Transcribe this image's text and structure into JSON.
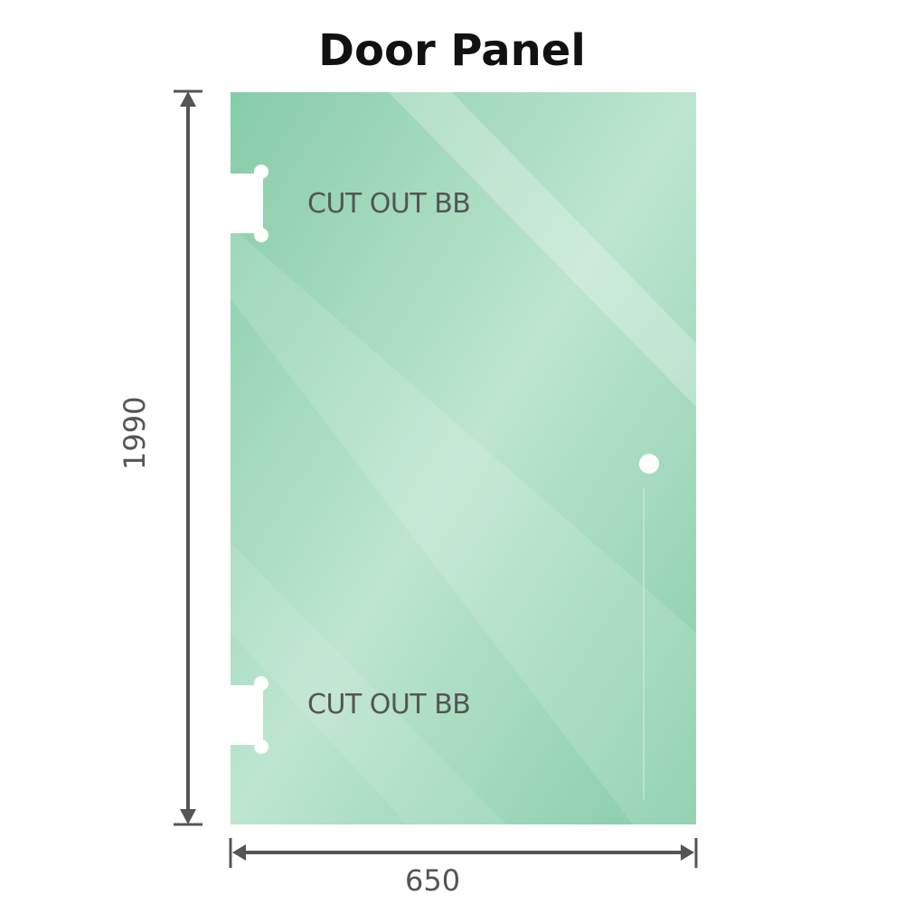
{
  "title": "Door Panel",
  "cutouts": [
    "CUT OUT BB",
    "CUT OUT BB"
  ],
  "dimensions": {
    "height": "1990",
    "width": "650"
  },
  "colors": {
    "glass": "#86cca8",
    "glass_light": "#bde5d0",
    "dimension_line": "#555555"
  }
}
